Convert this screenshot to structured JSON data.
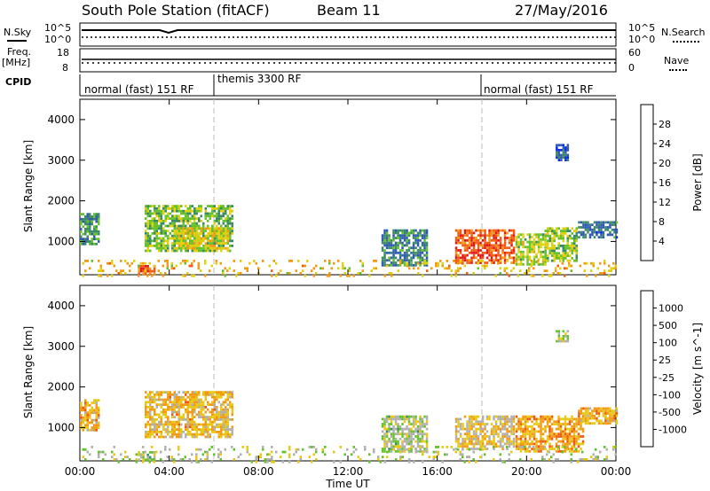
{
  "header": {
    "station": "South Pole Station (fitACF)",
    "beam": "Beam 11",
    "date": "27/May/2016"
  },
  "summary": {
    "nsky_label": "N.Sky",
    "nsearch_label": "N.Search",
    "noise_ticks": [
      "10^5",
      "10^0"
    ],
    "freq_label_1": "Freq.",
    "freq_label_2": "[MHz]",
    "freq_ticks": [
      "18",
      "8"
    ],
    "nave_label": "Nave",
    "nave_ticks": [
      "60",
      "0"
    ],
    "cpid_label": "CPID",
    "cpid_segments": [
      {
        "label": "normal (fast) 151 RF",
        "start_h": 0,
        "end_h": 6
      },
      {
        "label": "themis 3300 RF",
        "start_h": 6,
        "end_h": 18
      },
      {
        "label": "normal (fast) 151 RF",
        "start_h": 18,
        "end_h": 24
      }
    ]
  },
  "chart_data": [
    {
      "type": "heatmap",
      "title": "",
      "xlabel": "",
      "ylabel": "Slant Range [km]",
      "xlim": [
        0,
        24
      ],
      "ylim": [
        180,
        4500
      ],
      "yticks": [
        "1000",
        "2000",
        "3000",
        "4000"
      ],
      "colorbar_label": "Power [dB]",
      "colorbar_ticks": [
        "4",
        "8",
        "12",
        "16",
        "20",
        "24",
        "28"
      ],
      "colorbar_range": [
        0,
        32
      ],
      "colors": [
        "#0a2be0",
        "#2e5ab0",
        "#3c8a64",
        "#66c22a",
        "#e0d010",
        "#f29a14",
        "#f25a12",
        "#e01818"
      ],
      "regions": [
        {
          "t0": 0.0,
          "t1": 0.8,
          "r0": 950,
          "r1": 1700,
          "value": 10
        },
        {
          "t0": 2.9,
          "t1": 6.8,
          "r0": 800,
          "r1": 1900,
          "value": 14
        },
        {
          "t0": 4.2,
          "t1": 6.6,
          "r0": 850,
          "r1": 1350,
          "value": 18
        },
        {
          "t0": 2.6,
          "t1": 3.3,
          "r0": 180,
          "r1": 420,
          "value": 26
        },
        {
          "t0": 13.5,
          "t1": 15.5,
          "r0": 400,
          "r1": 1300,
          "value": 9
        },
        {
          "t0": 16.8,
          "t1": 19.4,
          "r0": 450,
          "r1": 1300,
          "value": 26
        },
        {
          "t0": 19.5,
          "t1": 20.8,
          "r0": 450,
          "r1": 1200,
          "value": 16
        },
        {
          "t0": 20.8,
          "t1": 22.2,
          "r0": 550,
          "r1": 1350,
          "value": 15
        },
        {
          "t0": 22.3,
          "t1": 24.0,
          "r0": 1100,
          "r1": 1500,
          "value": 8
        },
        {
          "t0": 21.3,
          "t1": 21.8,
          "r0": 3000,
          "r1": 3400,
          "value": 6
        },
        {
          "t0": 0.0,
          "t1": 24.0,
          "r0": 180,
          "r1": 550,
          "value": 20,
          "sparse": true
        }
      ]
    },
    {
      "type": "heatmap",
      "title": "",
      "xlabel": "Time UT",
      "ylabel": "Slant Range [km]",
      "xlim": [
        0,
        24
      ],
      "ylim": [
        180,
        4500
      ],
      "xticks": [
        "00:00",
        "04:00",
        "08:00",
        "12:00",
        "16:00",
        "20:00",
        "00:00"
      ],
      "yticks": [
        "1000",
        "2000",
        "3000",
        "4000"
      ],
      "colorbar_label": "Velocity [m s^-1]",
      "colorbar_ticks": [
        "1000",
        "500",
        "100",
        "25",
        "-25",
        "-100",
        "-500",
        "-1000"
      ],
      "colorbar_range": [
        -1200,
        1200
      ],
      "colors": [
        "#e01818",
        "#f05a10",
        "#f29a14",
        "#e8c814",
        "#b0b0b0",
        "#66c22a",
        "#3c8a64",
        "#2e5ab0",
        "#0a2be0"
      ],
      "regions": [
        {
          "t0": 0.0,
          "t1": 0.8,
          "r0": 950,
          "r1": 1700,
          "value": -400
        },
        {
          "t0": 2.9,
          "t1": 6.8,
          "r0": 800,
          "r1": 1900,
          "value": -350
        },
        {
          "t0": 2.6,
          "t1": 3.3,
          "r0": 180,
          "r1": 420,
          "value": 120
        },
        {
          "t0": 13.5,
          "t1": 15.5,
          "r0": 400,
          "r1": 1300,
          "value": 80
        },
        {
          "t0": 16.8,
          "t1": 19.4,
          "r0": 450,
          "r1": 1300,
          "value": -200
        },
        {
          "t0": 19.5,
          "t1": 22.5,
          "r0": 400,
          "r1": 1300,
          "value": -500
        },
        {
          "t0": 22.3,
          "t1": 24.0,
          "r0": 1100,
          "r1": 1500,
          "value": -400
        },
        {
          "t0": 21.3,
          "t1": 21.8,
          "r0": 3100,
          "r1": 3400,
          "value": 40
        },
        {
          "t0": 0.0,
          "t1": 24.0,
          "r0": 180,
          "r1": 550,
          "value": 0,
          "sparse": true
        }
      ]
    }
  ]
}
